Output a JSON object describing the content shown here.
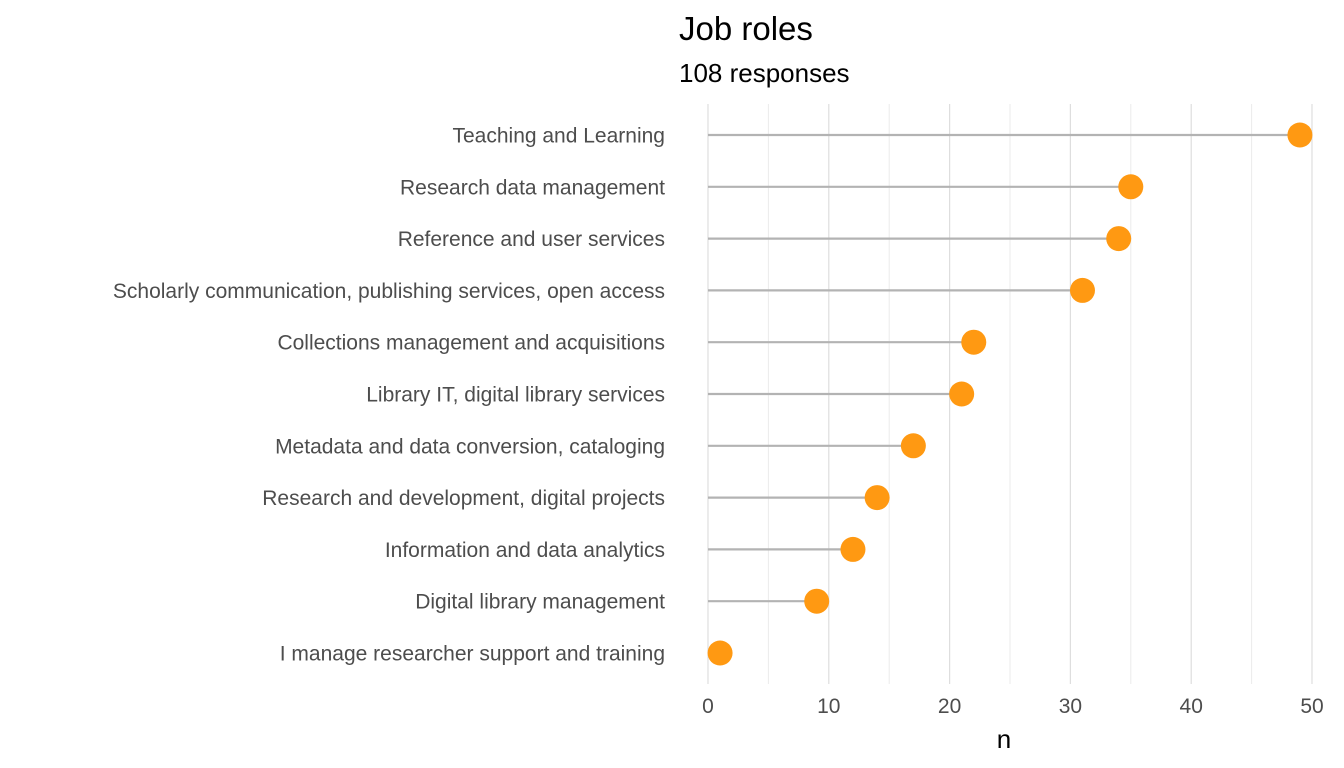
{
  "chart_data": {
    "type": "lollipop",
    "title": "Job roles",
    "subtitle": "108 responses",
    "xlabel": "n",
    "ylabel": "",
    "xlim": [
      0,
      50
    ],
    "x_ticks": [
      0,
      10,
      20,
      30,
      40,
      50
    ],
    "grid": "vertical",
    "colors": {
      "point": "#FF9912",
      "segment": "#B3B3B3",
      "grid_major": "#DEDEDE",
      "grid_minor": "#EBEBEB"
    },
    "categories": [
      "Teaching and Learning",
      "Research data management",
      "Reference and user services",
      "Scholarly communication, publishing services, open access",
      "Collections management and acquisitions",
      "Library IT, digital library services",
      "Metadata and data conversion, cataloging",
      "Research and development, digital projects",
      "Information and data analytics",
      "Digital library management",
      "I manage researcher support and training"
    ],
    "values": [
      49,
      35,
      34,
      31,
      22,
      21,
      17,
      14,
      12,
      9,
      1
    ]
  }
}
